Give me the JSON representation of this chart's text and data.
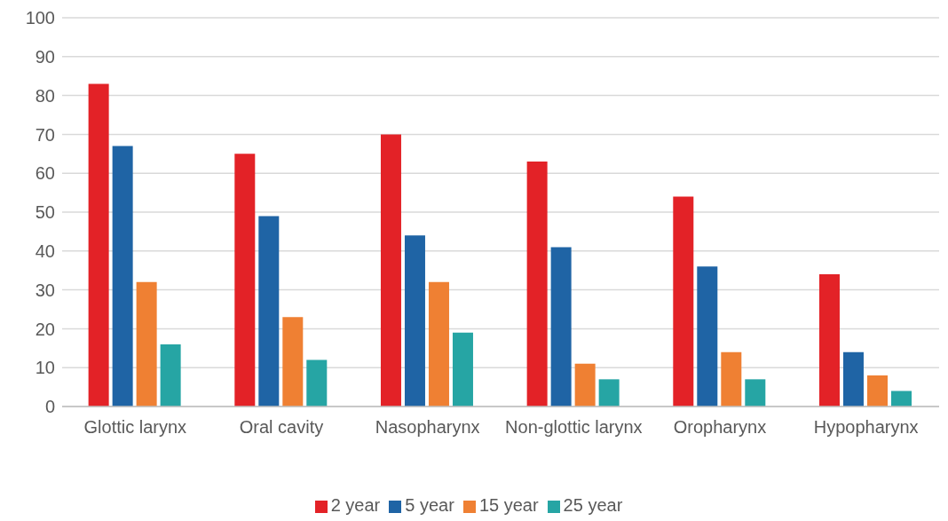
{
  "chart_data": {
    "type": "bar",
    "categories": [
      "Glottic larynx",
      "Oral cavity",
      "Nasopharynx",
      "Non-glottic larynx",
      "Oropharynx",
      "Hypopharynx"
    ],
    "series": [
      {
        "name": "2 year",
        "color": "#e32227",
        "values": [
          83,
          65,
          70,
          63,
          54,
          34
        ]
      },
      {
        "name": "5 year",
        "color": "#1f64a5",
        "values": [
          67,
          49,
          44,
          41,
          36,
          14
        ]
      },
      {
        "name": "15 year",
        "color": "#ef8033",
        "values": [
          32,
          23,
          32,
          11,
          14,
          8
        ]
      },
      {
        "name": "25 year",
        "color": "#26a5a4",
        "values": [
          16,
          12,
          19,
          7,
          7,
          4
        ]
      }
    ],
    "ylim": [
      0,
      100
    ],
    "yticks": [
      0,
      10,
      20,
      30,
      40,
      50,
      60,
      70,
      80,
      90,
      100
    ],
    "grid": "y",
    "legend": "bottom"
  }
}
